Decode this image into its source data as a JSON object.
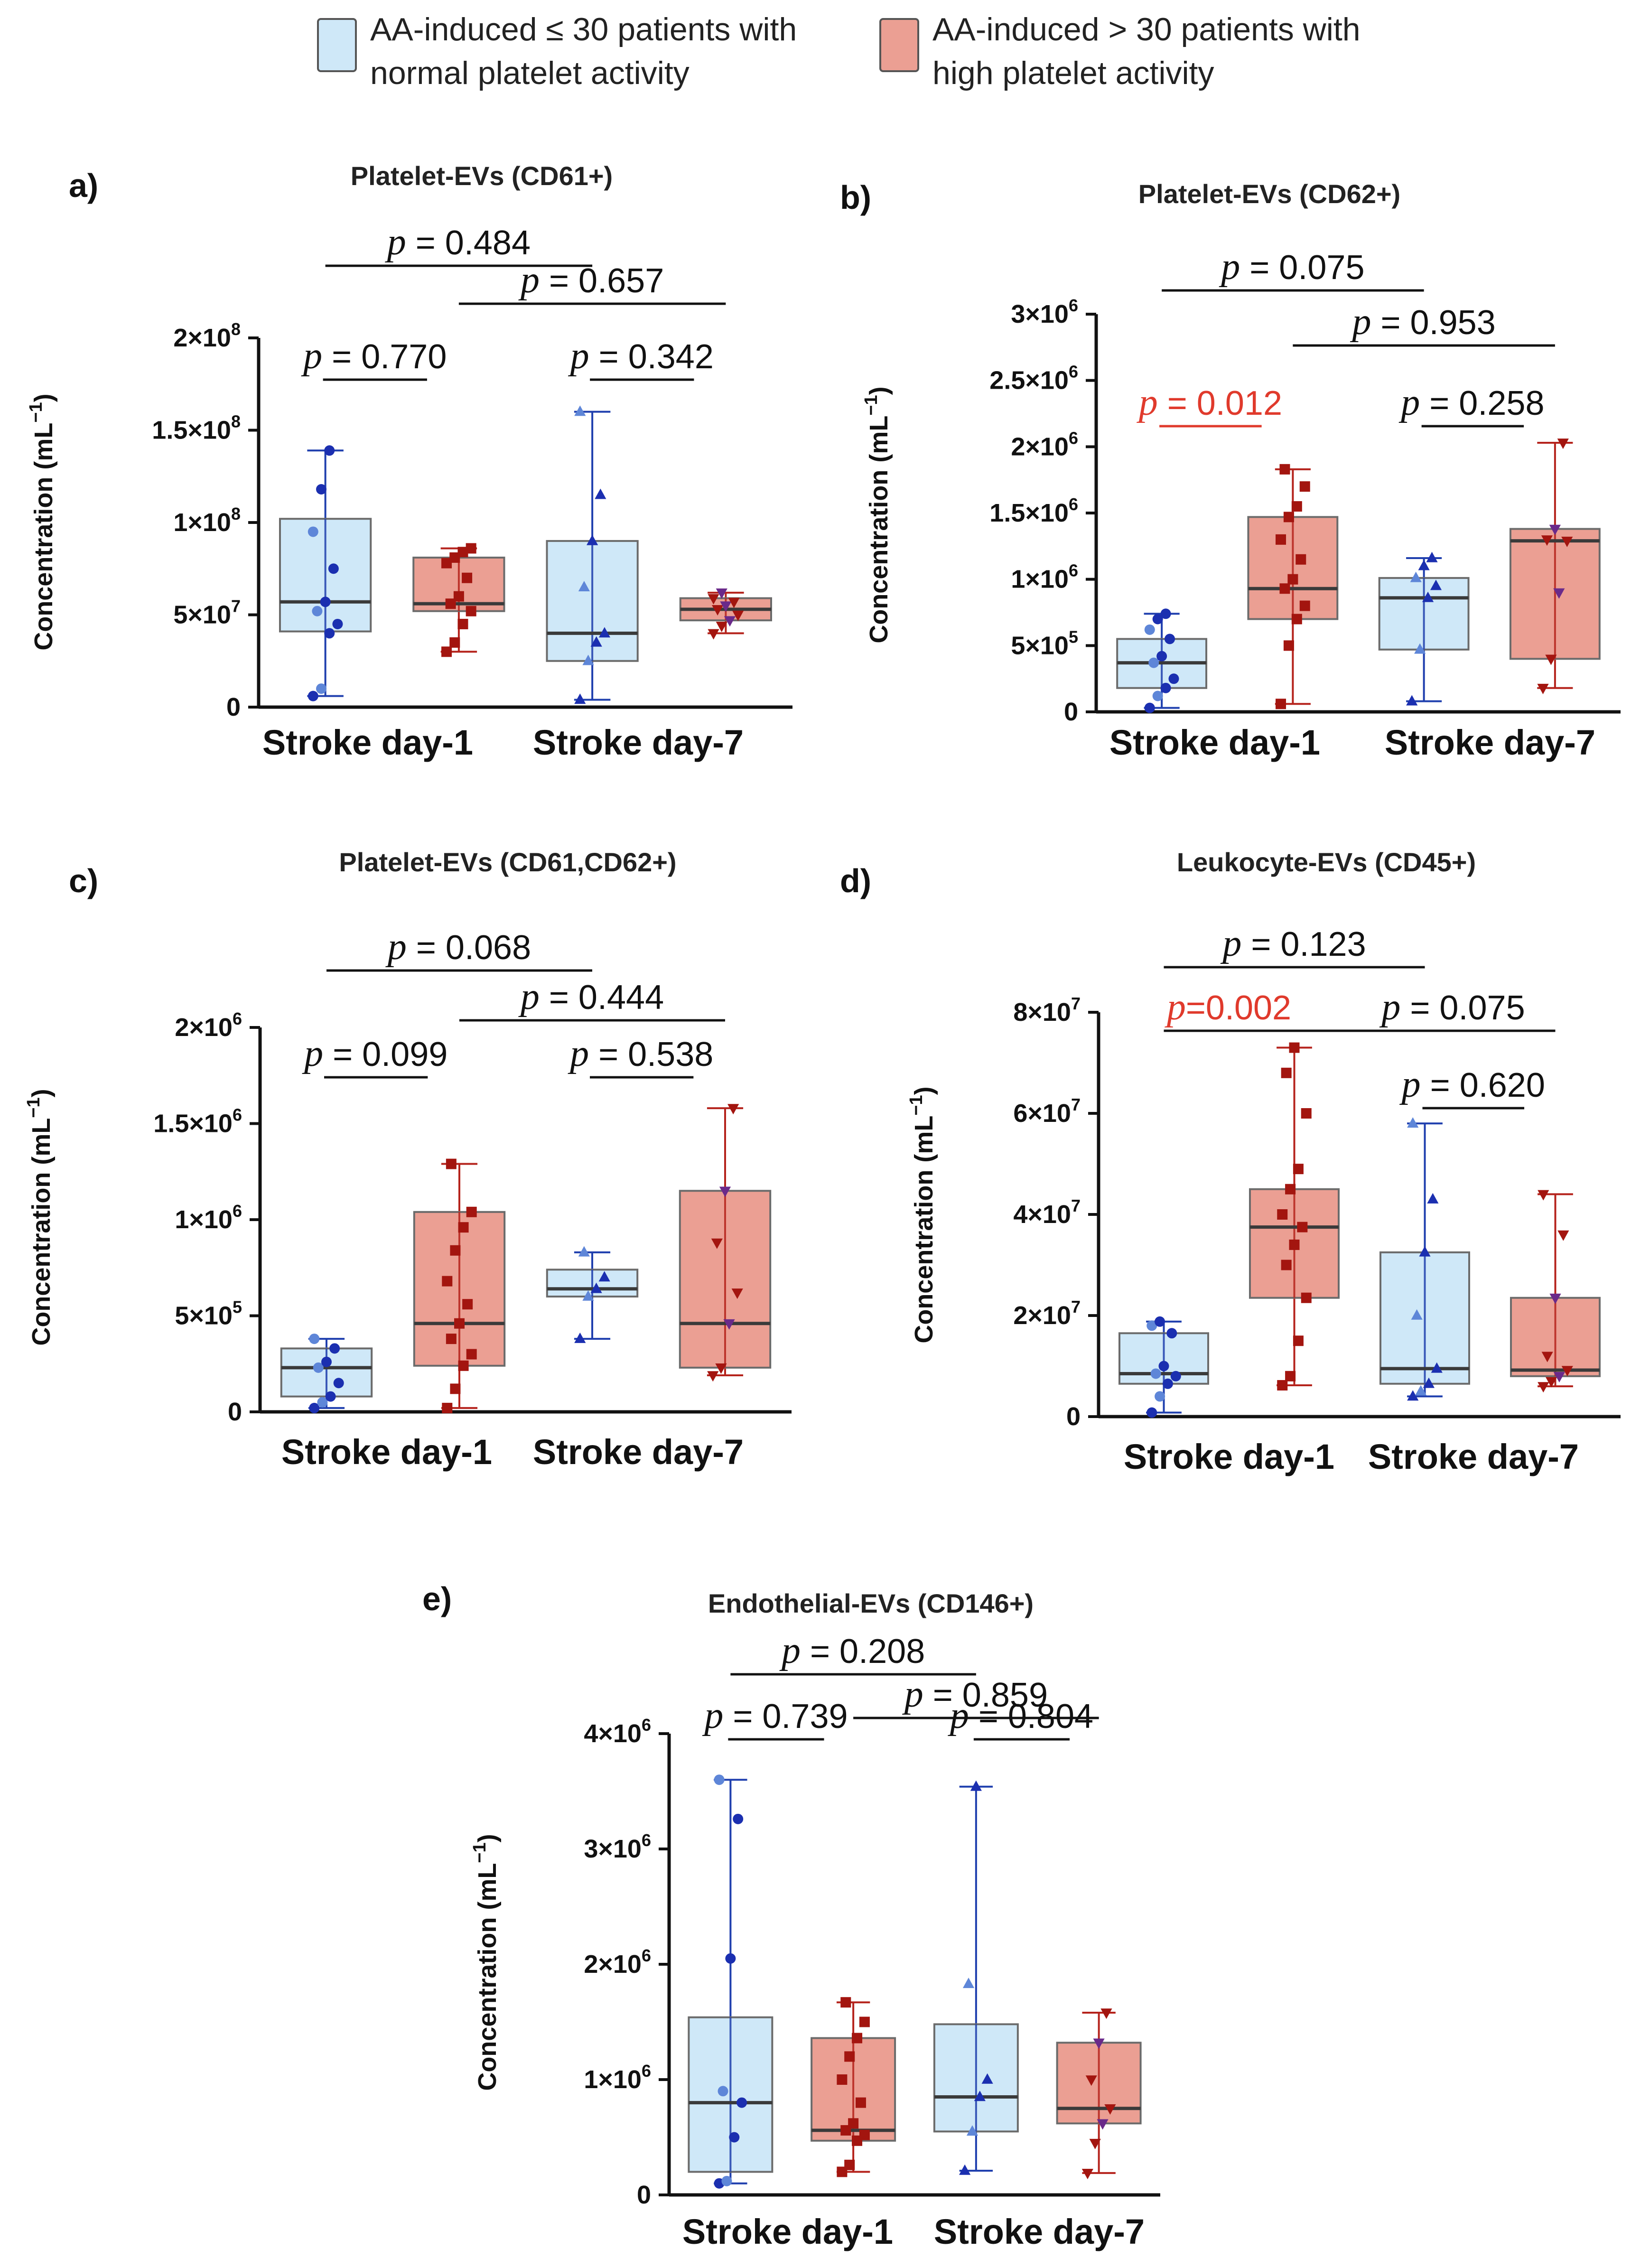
{
  "legend": [
    {
      "label_lines": [
        "AA-induced ≤ 30 patients with",
        "normal platelet activity"
      ],
      "fill": "#cfe8f8",
      "stroke": "#555555"
    },
    {
      "label_lines": [
        "AA-induced > 30 patients with",
        "high platelet activity"
      ],
      "fill": "#eb9f93",
      "stroke": "#555555"
    }
  ],
  "colors": {
    "normal_fill": "#cfe8f8",
    "normal_line": "#1f3fae",
    "normal_point": "#1b2fb0",
    "normal_point_light": "#5e86d8",
    "high_fill": "#eb9f93",
    "high_line": "#b5231c",
    "high_point": "#a3150f",
    "high_point_alt": "#6a2a8a",
    "sig": "#e03a2c"
  },
  "chart_data": [
    {
      "id": "a",
      "panel_label": "a)",
      "type": "box",
      "title": "Platelet-EVs (CD61+)",
      "ylabel": "Concentration (mL",
      "ylabel_sup": "−1",
      "ylabel_close": ")",
      "categories": [
        "Stroke day-1",
        "Stroke day-7"
      ],
      "ylim": [
        0,
        200000000
      ],
      "ticks": [
        {
          "v": 0,
          "base": "0",
          "sup": ""
        },
        {
          "v": 50000000,
          "base": "5×10",
          "sup": "7"
        },
        {
          "v": 100000000,
          "base": "1×10",
          "sup": "8"
        },
        {
          "v": 150000000,
          "base": "1.5×10",
          "sup": "8"
        },
        {
          "v": 200000000,
          "base": "2×10",
          "sup": "8"
        }
      ],
      "boxes": [
        {
          "group": "normal",
          "day": 1,
          "min": 6000000,
          "q1": 41000000,
          "median": 57000000,
          "q3": 102000000,
          "max": 139000000,
          "marker": "circle",
          "points": [
            6000000,
            10000000,
            40000000,
            45000000,
            52000000,
            57000000,
            75000000,
            95000000,
            118000000,
            139000000
          ]
        },
        {
          "group": "high",
          "day": 1,
          "min": 30000000,
          "q1": 52000000,
          "median": 56000000,
          "q3": 81000000,
          "max": 86000000,
          "marker": "square",
          "points": [
            30000000,
            35000000,
            45000000,
            52000000,
            56000000,
            60000000,
            70000000,
            78000000,
            81000000,
            84000000,
            86000000
          ]
        },
        {
          "group": "normal",
          "day": 7,
          "min": 4000000,
          "q1": 25000000,
          "median": 40000000,
          "q3": 90000000,
          "max": 160000000,
          "marker": "triangle",
          "points": [
            4000000,
            25000000,
            35000000,
            40000000,
            65000000,
            90000000,
            115000000,
            160000000
          ]
        },
        {
          "group": "high",
          "day": 7,
          "min": 40000000,
          "q1": 47000000,
          "median": 53000000,
          "q3": 59000000,
          "max": 62000000,
          "marker": "tridown",
          "points": [
            40000000,
            44000000,
            47000000,
            50000000,
            53000000,
            55000000,
            57000000,
            59000000,
            62000000
          ]
        }
      ],
      "comparisons": [
        {
          "label": "p = 0.484",
          "from": 0,
          "to": 2,
          "level": 0,
          "sig": false
        },
        {
          "label": "p = 0.657",
          "from": 1,
          "to": 3,
          "level": 1,
          "sig": false
        },
        {
          "label": "p = 0.770",
          "from": 0,
          "to": 1,
          "level": 2,
          "sig": false
        },
        {
          "label": "p = 0.342",
          "from": 2,
          "to": 3,
          "level": 2,
          "sig": false
        }
      ]
    },
    {
      "id": "b",
      "panel_label": "b)",
      "type": "box",
      "title": "Platelet-EVs (CD62+)",
      "ylabel": "Concentration (mL",
      "ylabel_sup": "−1",
      "ylabel_close": ")",
      "categories": [
        "Stroke day-1",
        "Stroke day-7"
      ],
      "ylim": [
        0,
        3000000
      ],
      "ticks": [
        {
          "v": 0,
          "base": "0",
          "sup": ""
        },
        {
          "v": 500000,
          "base": "5×10",
          "sup": "5"
        },
        {
          "v": 1000000,
          "base": "1×10",
          "sup": "6"
        },
        {
          "v": 1500000,
          "base": "1.5×10",
          "sup": "6"
        },
        {
          "v": 2000000,
          "base": "2×10",
          "sup": "6"
        },
        {
          "v": 2500000,
          "base": "2.5×10",
          "sup": "6"
        },
        {
          "v": 3000000,
          "base": "3×10",
          "sup": "6"
        }
      ],
      "boxes": [
        {
          "group": "normal",
          "day": 1,
          "min": 30000,
          "q1": 180000,
          "median": 370000,
          "q3": 550000,
          "max": 740000,
          "marker": "circle",
          "points": [
            30000,
            120000,
            180000,
            250000,
            370000,
            420000,
            550000,
            620000,
            700000,
            740000
          ]
        },
        {
          "group": "high",
          "day": 1,
          "min": 60000,
          "q1": 700000,
          "median": 930000,
          "q3": 1470000,
          "max": 1830000,
          "marker": "square",
          "points": [
            60000,
            500000,
            700000,
            800000,
            930000,
            1000000,
            1150000,
            1300000,
            1470000,
            1550000,
            1700000,
            1830000
          ]
        },
        {
          "group": "normal",
          "day": 7,
          "min": 80000,
          "q1": 470000,
          "median": 860000,
          "q3": 1010000,
          "max": 1160000,
          "marker": "triangle",
          "points": [
            80000,
            470000,
            860000,
            950000,
            1010000,
            1100000,
            1160000
          ]
        },
        {
          "group": "high",
          "day": 7,
          "min": 180000,
          "q1": 400000,
          "median": 1290000,
          "q3": 1380000,
          "max": 2030000,
          "marker": "tridown",
          "points": [
            180000,
            400000,
            900000,
            1290000,
            1300000,
            1380000,
            2030000
          ]
        }
      ],
      "comparisons": [
        {
          "label": "p = 0.075",
          "from": 0,
          "to": 2,
          "level": 0,
          "sig": false
        },
        {
          "label": "p = 0.953",
          "from": 1,
          "to": 3,
          "level": 1,
          "sig": false
        },
        {
          "label": "p = 0.012",
          "from": 0,
          "to": 1,
          "level": 2,
          "sig": true
        },
        {
          "label": "p = 0.258",
          "from": 2,
          "to": 3,
          "level": 2,
          "sig": false
        }
      ]
    },
    {
      "id": "c",
      "panel_label": "c)",
      "type": "box",
      "title": "Platelet-EVs (CD61,CD62+)",
      "ylabel": "Concentration (mL",
      "ylabel_sup": "−1",
      "ylabel_close": ")",
      "categories": [
        "Stroke day-1",
        "Stroke day-7"
      ],
      "ylim": [
        0,
        2000000
      ],
      "ticks": [
        {
          "v": 0,
          "base": "0",
          "sup": ""
        },
        {
          "v": 500000,
          "base": "5×10",
          "sup": "5"
        },
        {
          "v": 1000000,
          "base": "1×10",
          "sup": "6"
        },
        {
          "v": 1500000,
          "base": "1.5×10",
          "sup": "6"
        },
        {
          "v": 2000000,
          "base": "2×10",
          "sup": "6"
        }
      ],
      "boxes": [
        {
          "group": "normal",
          "day": 1,
          "min": 20000,
          "q1": 80000,
          "median": 230000,
          "q3": 330000,
          "max": 380000,
          "marker": "circle",
          "points": [
            20000,
            50000,
            80000,
            150000,
            230000,
            260000,
            330000,
            380000
          ]
        },
        {
          "group": "high",
          "day": 1,
          "min": 20000,
          "q1": 240000,
          "median": 460000,
          "q3": 1040000,
          "max": 1290000,
          "marker": "square",
          "points": [
            20000,
            120000,
            240000,
            300000,
            380000,
            460000,
            560000,
            680000,
            840000,
            960000,
            1040000,
            1290000
          ]
        },
        {
          "group": "normal",
          "day": 7,
          "min": 380000,
          "q1": 600000,
          "median": 640000,
          "q3": 740000,
          "max": 830000,
          "marker": "triangle",
          "points": [
            380000,
            600000,
            640000,
            700000,
            830000
          ]
        },
        {
          "group": "high",
          "day": 7,
          "min": 190000,
          "q1": 230000,
          "median": 460000,
          "q3": 1150000,
          "max": 1580000,
          "marker": "tridown",
          "points": [
            190000,
            230000,
            460000,
            620000,
            880000,
            1150000,
            1580000
          ]
        }
      ],
      "comparisons": [
        {
          "label": "p = 0.068",
          "from": 0,
          "to": 2,
          "level": 0,
          "sig": false
        },
        {
          "label": "p = 0.444",
          "from": 1,
          "to": 3,
          "level": 1,
          "sig": false
        },
        {
          "label": "p = 0.099",
          "from": 0,
          "to": 1,
          "level": 2,
          "sig": false
        },
        {
          "label": "p = 0.538",
          "from": 2,
          "to": 3,
          "level": 2,
          "sig": false
        }
      ]
    },
    {
      "id": "d",
      "panel_label": "d)",
      "type": "box",
      "title": "Leukocyte-EVs (CD45+)",
      "ylabel": "Concentration (mL",
      "ylabel_sup": "−1",
      "ylabel_close": ")",
      "categories": [
        "Stroke day-1",
        "Stroke day-7"
      ],
      "ylim": [
        0,
        80000000
      ],
      "ticks": [
        {
          "v": 0,
          "base": "0",
          "sup": ""
        },
        {
          "v": 20000000,
          "base": "2×10",
          "sup": "7"
        },
        {
          "v": 40000000,
          "base": "4×10",
          "sup": "7"
        },
        {
          "v": 60000000,
          "base": "6×10",
          "sup": "7"
        },
        {
          "v": 80000000,
          "base": "8×10",
          "sup": "7"
        }
      ],
      "boxes": [
        {
          "group": "normal",
          "day": 1,
          "min": 800000,
          "q1": 6500000,
          "median": 8500000,
          "q3": 16500000,
          "max": 18800000,
          "marker": "circle",
          "points": [
            800000,
            4000000,
            6500000,
            8000000,
            8500000,
            10000000,
            16500000,
            18000000,
            18800000
          ]
        },
        {
          "group": "high",
          "day": 1,
          "min": 6200000,
          "q1": 23500000,
          "median": 37500000,
          "q3": 45000000,
          "max": 73000000,
          "marker": "square",
          "points": [
            6200000,
            8000000,
            15000000,
            23500000,
            30000000,
            34000000,
            37500000,
            40000000,
            45000000,
            49000000,
            60000000,
            68000000,
            73000000
          ]
        },
        {
          "group": "normal",
          "day": 7,
          "min": 4000000,
          "q1": 6500000,
          "median": 9500000,
          "q3": 32500000,
          "max": 58000000,
          "marker": "triangle",
          "points": [
            4000000,
            5000000,
            6500000,
            9500000,
            20000000,
            32500000,
            43000000,
            58000000
          ]
        },
        {
          "group": "high",
          "day": 7,
          "min": 6000000,
          "q1": 8000000,
          "median": 9200000,
          "q3": 23500000,
          "max": 44000000,
          "marker": "tridown",
          "points": [
            6000000,
            7000000,
            8000000,
            9200000,
            12000000,
            23500000,
            36000000,
            44000000
          ]
        }
      ],
      "comparisons": [
        {
          "label": "p = 0.123",
          "from": 0,
          "to": 2,
          "level": 0,
          "sig": false
        },
        {
          "label": "p=0.002",
          "from": 0,
          "to": 1,
          "level": 1,
          "sig": true
        },
        {
          "label": "p = 0.075",
          "from": 1,
          "to": 3,
          "level": 1,
          "sig": false,
          "span_from": 0
        },
        {
          "label": "p = 0.620",
          "from": 2,
          "to": 3,
          "level": 2,
          "sig": false
        }
      ]
    },
    {
      "id": "e",
      "panel_label": "e)",
      "type": "box",
      "title": "Endothelial-EVs (CD146+)",
      "ylabel": "Concentration (mL",
      "ylabel_sup": "−1",
      "ylabel_close": ")",
      "categories": [
        "Stroke day-1",
        "Stroke day-7"
      ],
      "ylim": [
        0,
        4000000
      ],
      "ticks": [
        {
          "v": 0,
          "base": "0",
          "sup": ""
        },
        {
          "v": 1000000,
          "base": "1×10",
          "sup": "6"
        },
        {
          "v": 2000000,
          "base": "2×10",
          "sup": "6"
        },
        {
          "v": 3000000,
          "base": "3×10",
          "sup": "6"
        },
        {
          "v": 4000000,
          "base": "4×10",
          "sup": "6"
        }
      ],
      "boxes": [
        {
          "group": "normal",
          "day": 1,
          "min": 100000,
          "q1": 200000,
          "median": 800000,
          "q3": 1540000,
          "max": 3600000,
          "marker": "circle",
          "points": [
            100000,
            120000,
            500000,
            800000,
            900000,
            2050000,
            3260000,
            3600000
          ]
        },
        {
          "group": "high",
          "day": 1,
          "min": 200000,
          "q1": 470000,
          "median": 560000,
          "q3": 1360000,
          "max": 1670000,
          "marker": "square",
          "points": [
            200000,
            260000,
            470000,
            520000,
            560000,
            620000,
            800000,
            1000000,
            1200000,
            1360000,
            1500000,
            1670000
          ]
        },
        {
          "group": "normal",
          "day": 7,
          "min": 210000,
          "q1": 550000,
          "median": 850000,
          "q3": 1480000,
          "max": 3540000,
          "marker": "triangle",
          "points": [
            210000,
            550000,
            850000,
            1000000,
            1830000,
            3540000
          ]
        },
        {
          "group": "high",
          "day": 7,
          "min": 190000,
          "q1": 620000,
          "median": 750000,
          "q3": 1320000,
          "max": 1580000,
          "marker": "tridown",
          "points": [
            190000,
            450000,
            620000,
            750000,
            1000000,
            1320000,
            1580000
          ]
        }
      ],
      "comparisons": [
        {
          "label": "p = 0.208",
          "from": 0,
          "to": 2,
          "level": 0,
          "sig": false
        },
        {
          "label": "p = 0.859",
          "from": 1,
          "to": 3,
          "level": 1,
          "sig": false
        },
        {
          "label": "p = 0.739",
          "from": 0,
          "to": 1,
          "level": 2,
          "sig": false
        },
        {
          "label": "p = 0.804",
          "from": 2,
          "to": 3,
          "level": 2,
          "sig": false
        }
      ]
    }
  ]
}
